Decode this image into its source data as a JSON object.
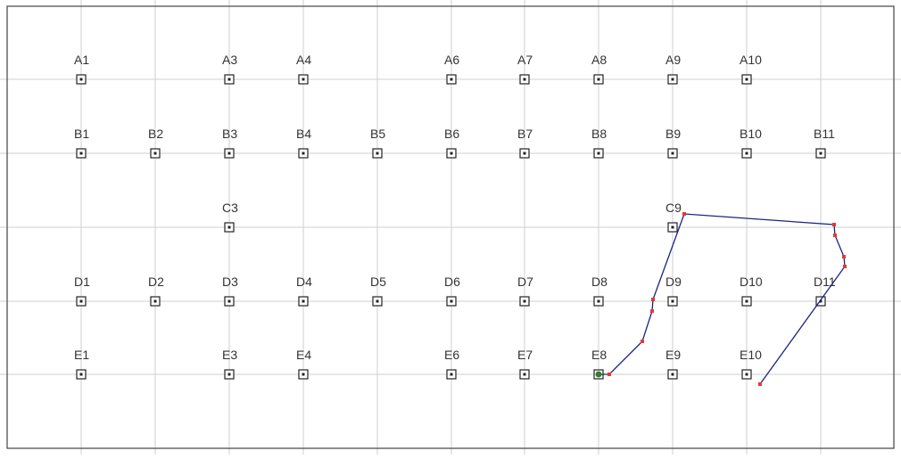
{
  "grid": {
    "columns": [
      "1",
      "2",
      "3",
      "4",
      "5",
      "6",
      "7",
      "8",
      "9",
      "10",
      "11"
    ],
    "rows": [
      "A",
      "B",
      "C",
      "D",
      "E"
    ]
  },
  "points": [
    {
      "label": "A1",
      "row": "A",
      "col": 1
    },
    {
      "label": "A3",
      "row": "A",
      "col": 3
    },
    {
      "label": "A4",
      "row": "A",
      "col": 4
    },
    {
      "label": "A6",
      "row": "A",
      "col": 6
    },
    {
      "label": "A7",
      "row": "A",
      "col": 7
    },
    {
      "label": "A8",
      "row": "A",
      "col": 8
    },
    {
      "label": "A9",
      "row": "A",
      "col": 9
    },
    {
      "label": "A10",
      "row": "A",
      "col": 10
    },
    {
      "label": "B1",
      "row": "B",
      "col": 1
    },
    {
      "label": "B2",
      "row": "B",
      "col": 2
    },
    {
      "label": "B3",
      "row": "B",
      "col": 3
    },
    {
      "label": "B4",
      "row": "B",
      "col": 4
    },
    {
      "label": "B5",
      "row": "B",
      "col": 5
    },
    {
      "label": "B6",
      "row": "B",
      "col": 6
    },
    {
      "label": "B7",
      "row": "B",
      "col": 7
    },
    {
      "label": "B8",
      "row": "B",
      "col": 8
    },
    {
      "label": "B9",
      "row": "B",
      "col": 9
    },
    {
      "label": "B10",
      "row": "B",
      "col": 10
    },
    {
      "label": "B11",
      "row": "B",
      "col": 11
    },
    {
      "label": "C3",
      "row": "C",
      "col": 3
    },
    {
      "label": "C9",
      "row": "C",
      "col": 9
    },
    {
      "label": "D1",
      "row": "D",
      "col": 1
    },
    {
      "label": "D2",
      "row": "D",
      "col": 2
    },
    {
      "label": "D3",
      "row": "D",
      "col": 3
    },
    {
      "label": "D4",
      "row": "D",
      "col": 4
    },
    {
      "label": "D5",
      "row": "D",
      "col": 5
    },
    {
      "label": "D6",
      "row": "D",
      "col": 6
    },
    {
      "label": "D7",
      "row": "D",
      "col": 7
    },
    {
      "label": "D8",
      "row": "D",
      "col": 8
    },
    {
      "label": "D9",
      "row": "D",
      "col": 9
    },
    {
      "label": "D10",
      "row": "D",
      "col": 10
    },
    {
      "label": "D11",
      "row": "D",
      "col": 11
    },
    {
      "label": "E1",
      "row": "E",
      "col": 1
    },
    {
      "label": "E3",
      "row": "E",
      "col": 3
    },
    {
      "label": "E4",
      "row": "E",
      "col": 4
    },
    {
      "label": "E6",
      "row": "E",
      "col": 6
    },
    {
      "label": "E7",
      "row": "E",
      "col": 7
    },
    {
      "label": "E8",
      "row": "E",
      "col": 8
    },
    {
      "label": "E9",
      "row": "E",
      "col": 9
    },
    {
      "label": "E10",
      "row": "E",
      "col": 10
    }
  ],
  "path_start_point": "E8",
  "colors": {
    "grid": "#cfcfcf",
    "frame": "#444444",
    "marker": "#222222",
    "path": "#1a237e",
    "vertex": "#e53935",
    "start": "#2e7d32"
  }
}
